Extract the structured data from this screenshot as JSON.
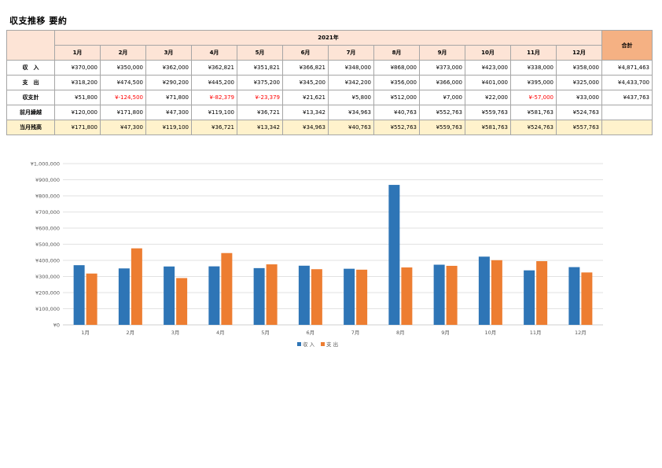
{
  "title": "収支推移 要約",
  "table": {
    "year_label": "2021年",
    "total_label": "合計",
    "months": [
      "1月",
      "2月",
      "3月",
      "4月",
      "5月",
      "6月",
      "7月",
      "8月",
      "9月",
      "10月",
      "11月",
      "12月"
    ],
    "rows": [
      {
        "label": "収　入",
        "values": [
          "¥370,000",
          "¥350,000",
          "¥362,000",
          "¥362,821",
          "¥351,821",
          "¥366,821",
          "¥348,000",
          "¥868,000",
          "¥373,000",
          "¥423,000",
          "¥338,000",
          "¥358,000"
        ],
        "total": "¥4,871,463",
        "neg": []
      },
      {
        "label": "支　出",
        "values": [
          "¥318,200",
          "¥474,500",
          "¥290,200",
          "¥445,200",
          "¥375,200",
          "¥345,200",
          "¥342,200",
          "¥356,000",
          "¥366,000",
          "¥401,000",
          "¥395,000",
          "¥325,000"
        ],
        "total": "¥4,433,700",
        "neg": []
      },
      {
        "label": "収支計",
        "values": [
          "¥51,800",
          "¥-124,500",
          "¥71,800",
          "¥-82,379",
          "¥-23,379",
          "¥21,621",
          "¥5,800",
          "¥512,000",
          "¥7,000",
          "¥22,000",
          "¥-57,000",
          "¥33,000"
        ],
        "total": "¥437,763",
        "neg": [
          1,
          3,
          4,
          10
        ]
      },
      {
        "label": "前月繰越",
        "values": [
          "¥120,000",
          "¥171,800",
          "¥47,300",
          "¥119,100",
          "¥36,721",
          "¥13,342",
          "¥34,963",
          "¥40,763",
          "¥552,763",
          "¥559,763",
          "¥581,763",
          "¥524,763"
        ],
        "total": "",
        "neg": []
      },
      {
        "label": "当月残高",
        "values": [
          "¥171,800",
          "¥47,300",
          "¥119,100",
          "¥36,721",
          "¥13,342",
          "¥34,963",
          "¥40,763",
          "¥552,763",
          "¥559,763",
          "¥581,763",
          "¥524,763",
          "¥557,763"
        ],
        "total": "",
        "neg": []
      }
    ]
  },
  "chart_data": {
    "type": "bar",
    "categories": [
      "1月",
      "2月",
      "3月",
      "4月",
      "5月",
      "6月",
      "7月",
      "8月",
      "9月",
      "10月",
      "11月",
      "12月"
    ],
    "series": [
      {
        "name": "収 入",
        "color": "#2e75b6",
        "values": [
          370000,
          350000,
          362000,
          362821,
          351821,
          366821,
          348000,
          868000,
          373000,
          423000,
          338000,
          358000
        ]
      },
      {
        "name": "支 出",
        "color": "#ed7d31",
        "values": [
          318200,
          474500,
          290200,
          445200,
          375200,
          345200,
          342200,
          356000,
          366000,
          401000,
          395000,
          325000
        ]
      }
    ],
    "ylim": [
      0,
      1000000
    ],
    "yticks": [
      0,
      100000,
      200000,
      300000,
      400000,
      500000,
      600000,
      700000,
      800000,
      900000,
      1000000
    ],
    "ytick_labels": [
      "¥0",
      "¥100,000",
      "¥200,000",
      "¥300,000",
      "¥400,000",
      "¥500,000",
      "¥600,000",
      "¥700,000",
      "¥800,000",
      "¥900,000",
      "¥1,000,000"
    ],
    "grid": true,
    "legend": "bottom",
    "title": "",
    "xlabel": "",
    "ylabel": ""
  }
}
